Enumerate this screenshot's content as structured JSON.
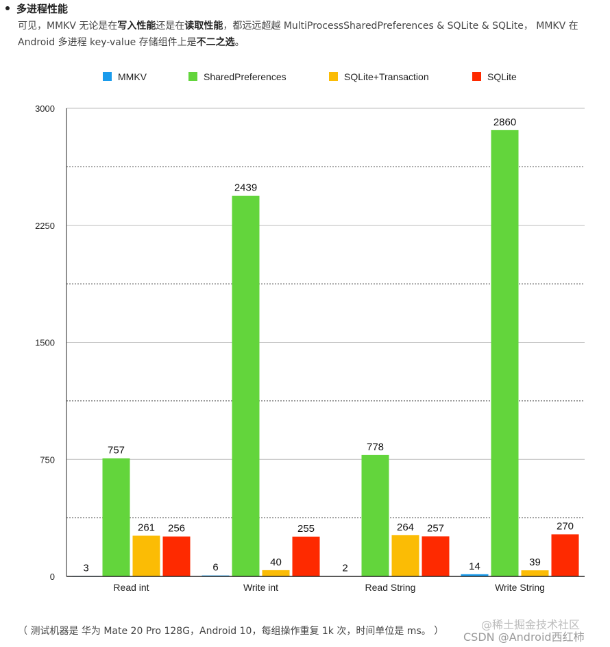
{
  "text": {
    "heading": "多进程性能",
    "para_prefix": "可见，MMKV 无论是在",
    "para_bold1": "写入性能",
    "para_mid1": "还是在",
    "para_bold2": "读取性能",
    "para_mid2": "，都远远超越 MultiProcessSharedPreferences & SQLite & SQLite， MMKV 在 Android 多进程 key-value 存储组件上是",
    "para_bold3": "不二之选",
    "para_suffix": "。",
    "footnote": "（ 测试机器是 华为 Mate 20 Pro 128G，Android 10，每组操作重复 1k 次，时间单位是 ms。 ）",
    "watermark_juejin": "@稀土掘金技术社区",
    "watermark_csdn": "CSDN @Android西红柿"
  },
  "chart_data": {
    "type": "bar",
    "title": "",
    "xlabel": "",
    "ylabel": "",
    "categories": [
      "Read int",
      "Write int",
      "Read String",
      "Write String"
    ],
    "series": [
      {
        "name": "MMKV",
        "color": "#1a9bec",
        "values": [
          3,
          6,
          2,
          14
        ]
      },
      {
        "name": "SharedPreferences",
        "color": "#63d53c",
        "values": [
          757,
          2439,
          778,
          2860
        ]
      },
      {
        "name": "SQLite+Transaction",
        "color": "#fbbc05",
        "values": [
          261,
          40,
          264,
          39
        ]
      },
      {
        "name": "SQLite",
        "color": "#fe2a00",
        "values": [
          256,
          255,
          257,
          270
        ]
      }
    ],
    "ylim": [
      0,
      3000
    ],
    "yticks": [
      0,
      750,
      1500,
      2250,
      3000
    ],
    "legend_position": "top",
    "grid": true
  }
}
